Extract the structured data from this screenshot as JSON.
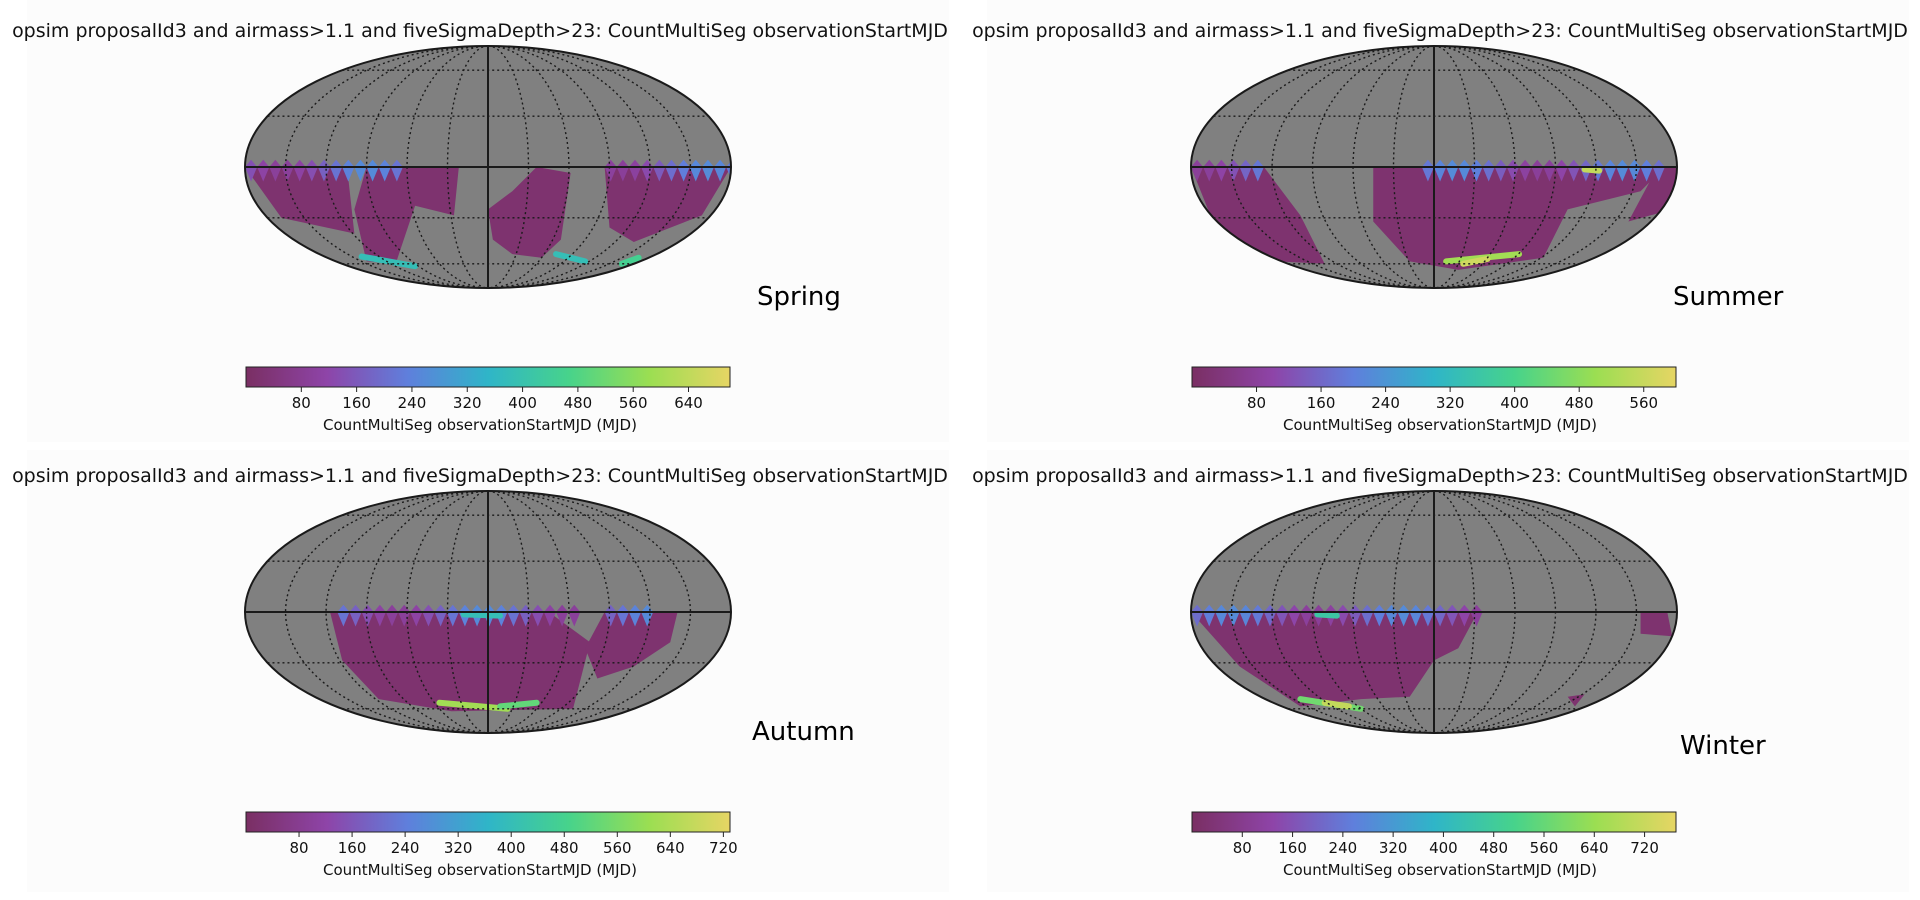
{
  "chart_data": [
    {
      "type": "heatmap",
      "projection": "mollweide",
      "title": "opsim proposalId3 and airmass>1.1 and fiveSigmaDepth>23: CountMultiSeg observationStartMJD",
      "season": "Spring",
      "colorbar": {
        "ticks": [
          80,
          160,
          240,
          320,
          400,
          480,
          560,
          640
        ],
        "vmin": 0,
        "vmax": 700,
        "label": "CountMultiSeg observationStartMJD (MJD)"
      }
    },
    {
      "type": "heatmap",
      "projection": "mollweide",
      "title": "opsim proposalId3 and airmass>1.1 and fiveSigmaDepth>23: CountMultiSeg observationStartMJD",
      "season": "Summer",
      "colorbar": {
        "ticks": [
          80,
          160,
          240,
          320,
          400,
          480,
          560
        ],
        "vmin": 0,
        "vmax": 600,
        "label": "CountMultiSeg observationStartMJD (MJD)"
      }
    },
    {
      "type": "heatmap",
      "projection": "mollweide",
      "title": "opsim proposalId3 and airmass>1.1 and fiveSigmaDepth>23: CountMultiSeg observationStartMJD",
      "season": "Autumn",
      "colorbar": {
        "ticks": [
          80,
          160,
          240,
          320,
          400,
          480,
          560,
          640,
          720
        ],
        "vmin": 0,
        "vmax": 730,
        "label": "CountMultiSeg observationStartMJD (MJD)"
      }
    },
    {
      "type": "heatmap",
      "projection": "mollweide",
      "title": "opsim proposalId3 and airmass>1.1 and fiveSigmaDepth>23: CountMultiSeg observationStartMJD",
      "season": "Winter",
      "colorbar": {
        "ticks": [
          80,
          160,
          240,
          320,
          400,
          480,
          560,
          640,
          720
        ],
        "vmin": 0,
        "vmax": 770,
        "label": "CountMultiSeg observationStartMJD (MJD)"
      }
    }
  ],
  "colors": {
    "background_sky": "#808080",
    "grid": "#1a1a1a",
    "cmap": [
      "#7a2f63",
      "#8e44a8",
      "#5f7fdc",
      "#2fb5c8",
      "#47d38b",
      "#9bde52",
      "#e6d564"
    ]
  }
}
